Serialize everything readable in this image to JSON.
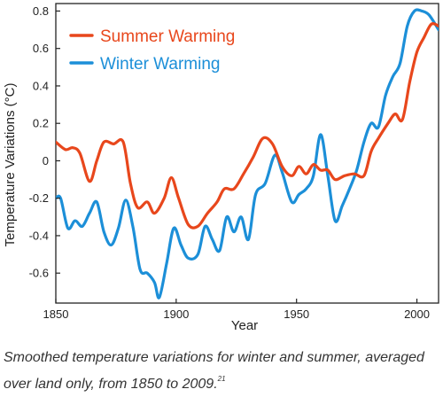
{
  "caption": {
    "text": "Smoothed temperature variations for winter and summer, averaged over land only, from 1850 to 2009.",
    "ref": "21"
  },
  "chart_data": {
    "type": "line",
    "xlabel": "Year",
    "ylabel": "Temperature Variations (°C)",
    "xlim": [
      1850,
      2009
    ],
    "ylim": [
      -0.76,
      0.84
    ],
    "x_ticks": [
      1850,
      1900,
      1950,
      2000
    ],
    "y_ticks": [
      -0.6,
      -0.4,
      -0.2,
      0,
      0.2,
      0.4,
      0.6,
      0.8
    ],
    "y_tick_labels": [
      "-0.6",
      "-0.4",
      "-0.2",
      "0",
      "0.2",
      "0.4",
      "0.6",
      "0.8"
    ],
    "grid": false,
    "legend_position": "top-left",
    "colors": {
      "summer": "#e8471c",
      "winter": "#1c8fd8"
    },
    "series": [
      {
        "name": "Summer Warming",
        "color": "#e8471c",
        "x": [
          1850,
          1854,
          1857,
          1860,
          1864,
          1867,
          1870,
          1874,
          1878,
          1881,
          1884,
          1888,
          1891,
          1895,
          1898,
          1901,
          1905,
          1909,
          1913,
          1917,
          1920,
          1924,
          1928,
          1932,
          1936,
          1940,
          1944,
          1948,
          1951,
          1954,
          1957,
          1960,
          1963,
          1966,
          1970,
          1974,
          1978,
          1981,
          1984,
          1988,
          1991,
          1994,
          1997,
          2000,
          2003,
          2006,
          2009
        ],
        "values": [
          0.1,
          0.06,
          0.07,
          0.04,
          -0.11,
          0.0,
          0.1,
          0.09,
          0.1,
          -0.12,
          -0.25,
          -0.22,
          -0.28,
          -0.2,
          -0.09,
          -0.2,
          -0.34,
          -0.35,
          -0.28,
          -0.22,
          -0.15,
          -0.15,
          -0.07,
          0.02,
          0.12,
          0.09,
          -0.03,
          -0.08,
          -0.03,
          -0.07,
          -0.02,
          -0.05,
          -0.05,
          -0.1,
          -0.08,
          -0.07,
          -0.08,
          0.05,
          0.12,
          0.2,
          0.25,
          0.22,
          0.42,
          0.58,
          0.66,
          0.73,
          0.72
        ]
      },
      {
        "name": "Winter Warming",
        "color": "#1c8fd8",
        "x": [
          1850,
          1852,
          1855,
          1858,
          1861,
          1864,
          1867,
          1870,
          1873,
          1876,
          1879,
          1882,
          1885,
          1888,
          1891,
          1893,
          1896,
          1899,
          1902,
          1905,
          1909,
          1912,
          1915,
          1918,
          1921,
          1924,
          1927,
          1930,
          1933,
          1937,
          1941,
          1944,
          1948,
          1951,
          1954,
          1957,
          1960,
          1963,
          1966,
          1969,
          1972,
          1975,
          1978,
          1981,
          1984,
          1987,
          1990,
          1993,
          1996,
          1999,
          2002,
          2005,
          2009
        ],
        "values": [
          -0.2,
          -0.2,
          -0.36,
          -0.32,
          -0.35,
          -0.28,
          -0.22,
          -0.38,
          -0.45,
          -0.36,
          -0.21,
          -0.35,
          -0.58,
          -0.6,
          -0.65,
          -0.73,
          -0.55,
          -0.36,
          -0.45,
          -0.52,
          -0.5,
          -0.35,
          -0.42,
          -0.48,
          -0.3,
          -0.38,
          -0.3,
          -0.42,
          -0.18,
          -0.12,
          0.03,
          -0.06,
          -0.22,
          -0.18,
          -0.15,
          -0.08,
          0.14,
          -0.08,
          -0.32,
          -0.24,
          -0.15,
          -0.05,
          0.1,
          0.2,
          0.18,
          0.35,
          0.45,
          0.52,
          0.72,
          0.8,
          0.8,
          0.78,
          0.7
        ]
      }
    ]
  }
}
